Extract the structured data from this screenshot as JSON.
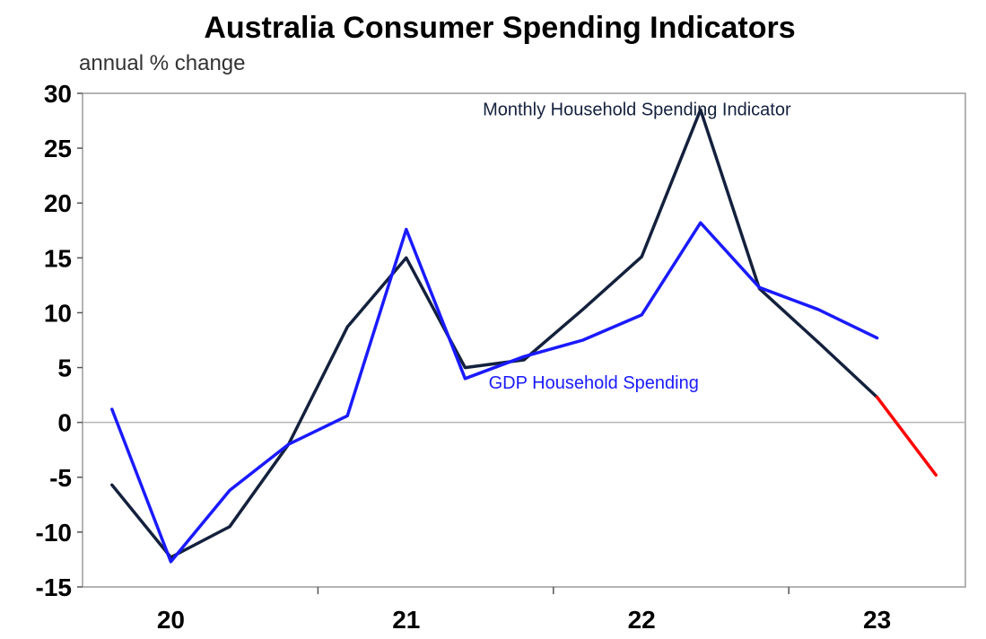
{
  "chart_data": {
    "type": "line",
    "title": "Australia Consumer Spending Indicators",
    "subtitle": "annual % change",
    "xlabel": "",
    "ylabel": "annual % change",
    "ylim": [
      -15,
      30
    ],
    "yticks": [
      30,
      25,
      20,
      15,
      10,
      5,
      0,
      -5,
      -10,
      -15
    ],
    "xlim": [
      0,
      15
    ],
    "xtick_labels": [
      {
        "label": "20",
        "x": 1.5
      },
      {
        "label": "21",
        "x": 5.5
      },
      {
        "label": "22",
        "x": 9.5
      },
      {
        "label": "23",
        "x": 13.5
      }
    ],
    "x_dividers": [
      4,
      8,
      12
    ],
    "zero_line": true,
    "series": [
      {
        "name": "Monthly Household Spending Indicator",
        "color": "#14213d",
        "x": [
          0.5,
          1.5,
          2.5,
          3.5,
          4.5,
          5.5,
          6.5,
          7.5,
          8.5,
          9.5,
          10.5,
          11.5,
          12.5
        ],
        "values": [
          -5.7,
          -12.3,
          -9.5,
          -2.0,
          8.7,
          15.0,
          5.0,
          5.7,
          10.3,
          15.1,
          28.5,
          12.2,
          7.3
        ],
        "label_x": 6.8,
        "label_y": 28.0
      },
      {
        "name": "Monthly Household Spending Indicator (latest)",
        "color": "#14213d",
        "x": [
          12.5,
          13.5
        ],
        "values": [
          7.3,
          2.3
        ],
        "hide_label": true
      },
      {
        "name": "Monthly Household Spending Indicator (projection)",
        "color": "#ff0000",
        "x": [
          13.5,
          14.5
        ],
        "values": [
          2.3,
          -4.8
        ],
        "hide_label": true
      },
      {
        "name": "GDP Household Spending",
        "color": "#1a1aff",
        "x": [
          0.5,
          1.5,
          2.5,
          3.5,
          4.5,
          5.5,
          6.5,
          7.5,
          8.5,
          9.5,
          10.5,
          11.5,
          12.5,
          13.5
        ],
        "values": [
          1.2,
          -12.7,
          -6.2,
          -2.0,
          0.6,
          17.6,
          4.0,
          6.0,
          7.5,
          9.8,
          18.2,
          12.3,
          10.3,
          7.7
        ],
        "label_x": 6.9,
        "label_y": 3.1
      }
    ]
  }
}
